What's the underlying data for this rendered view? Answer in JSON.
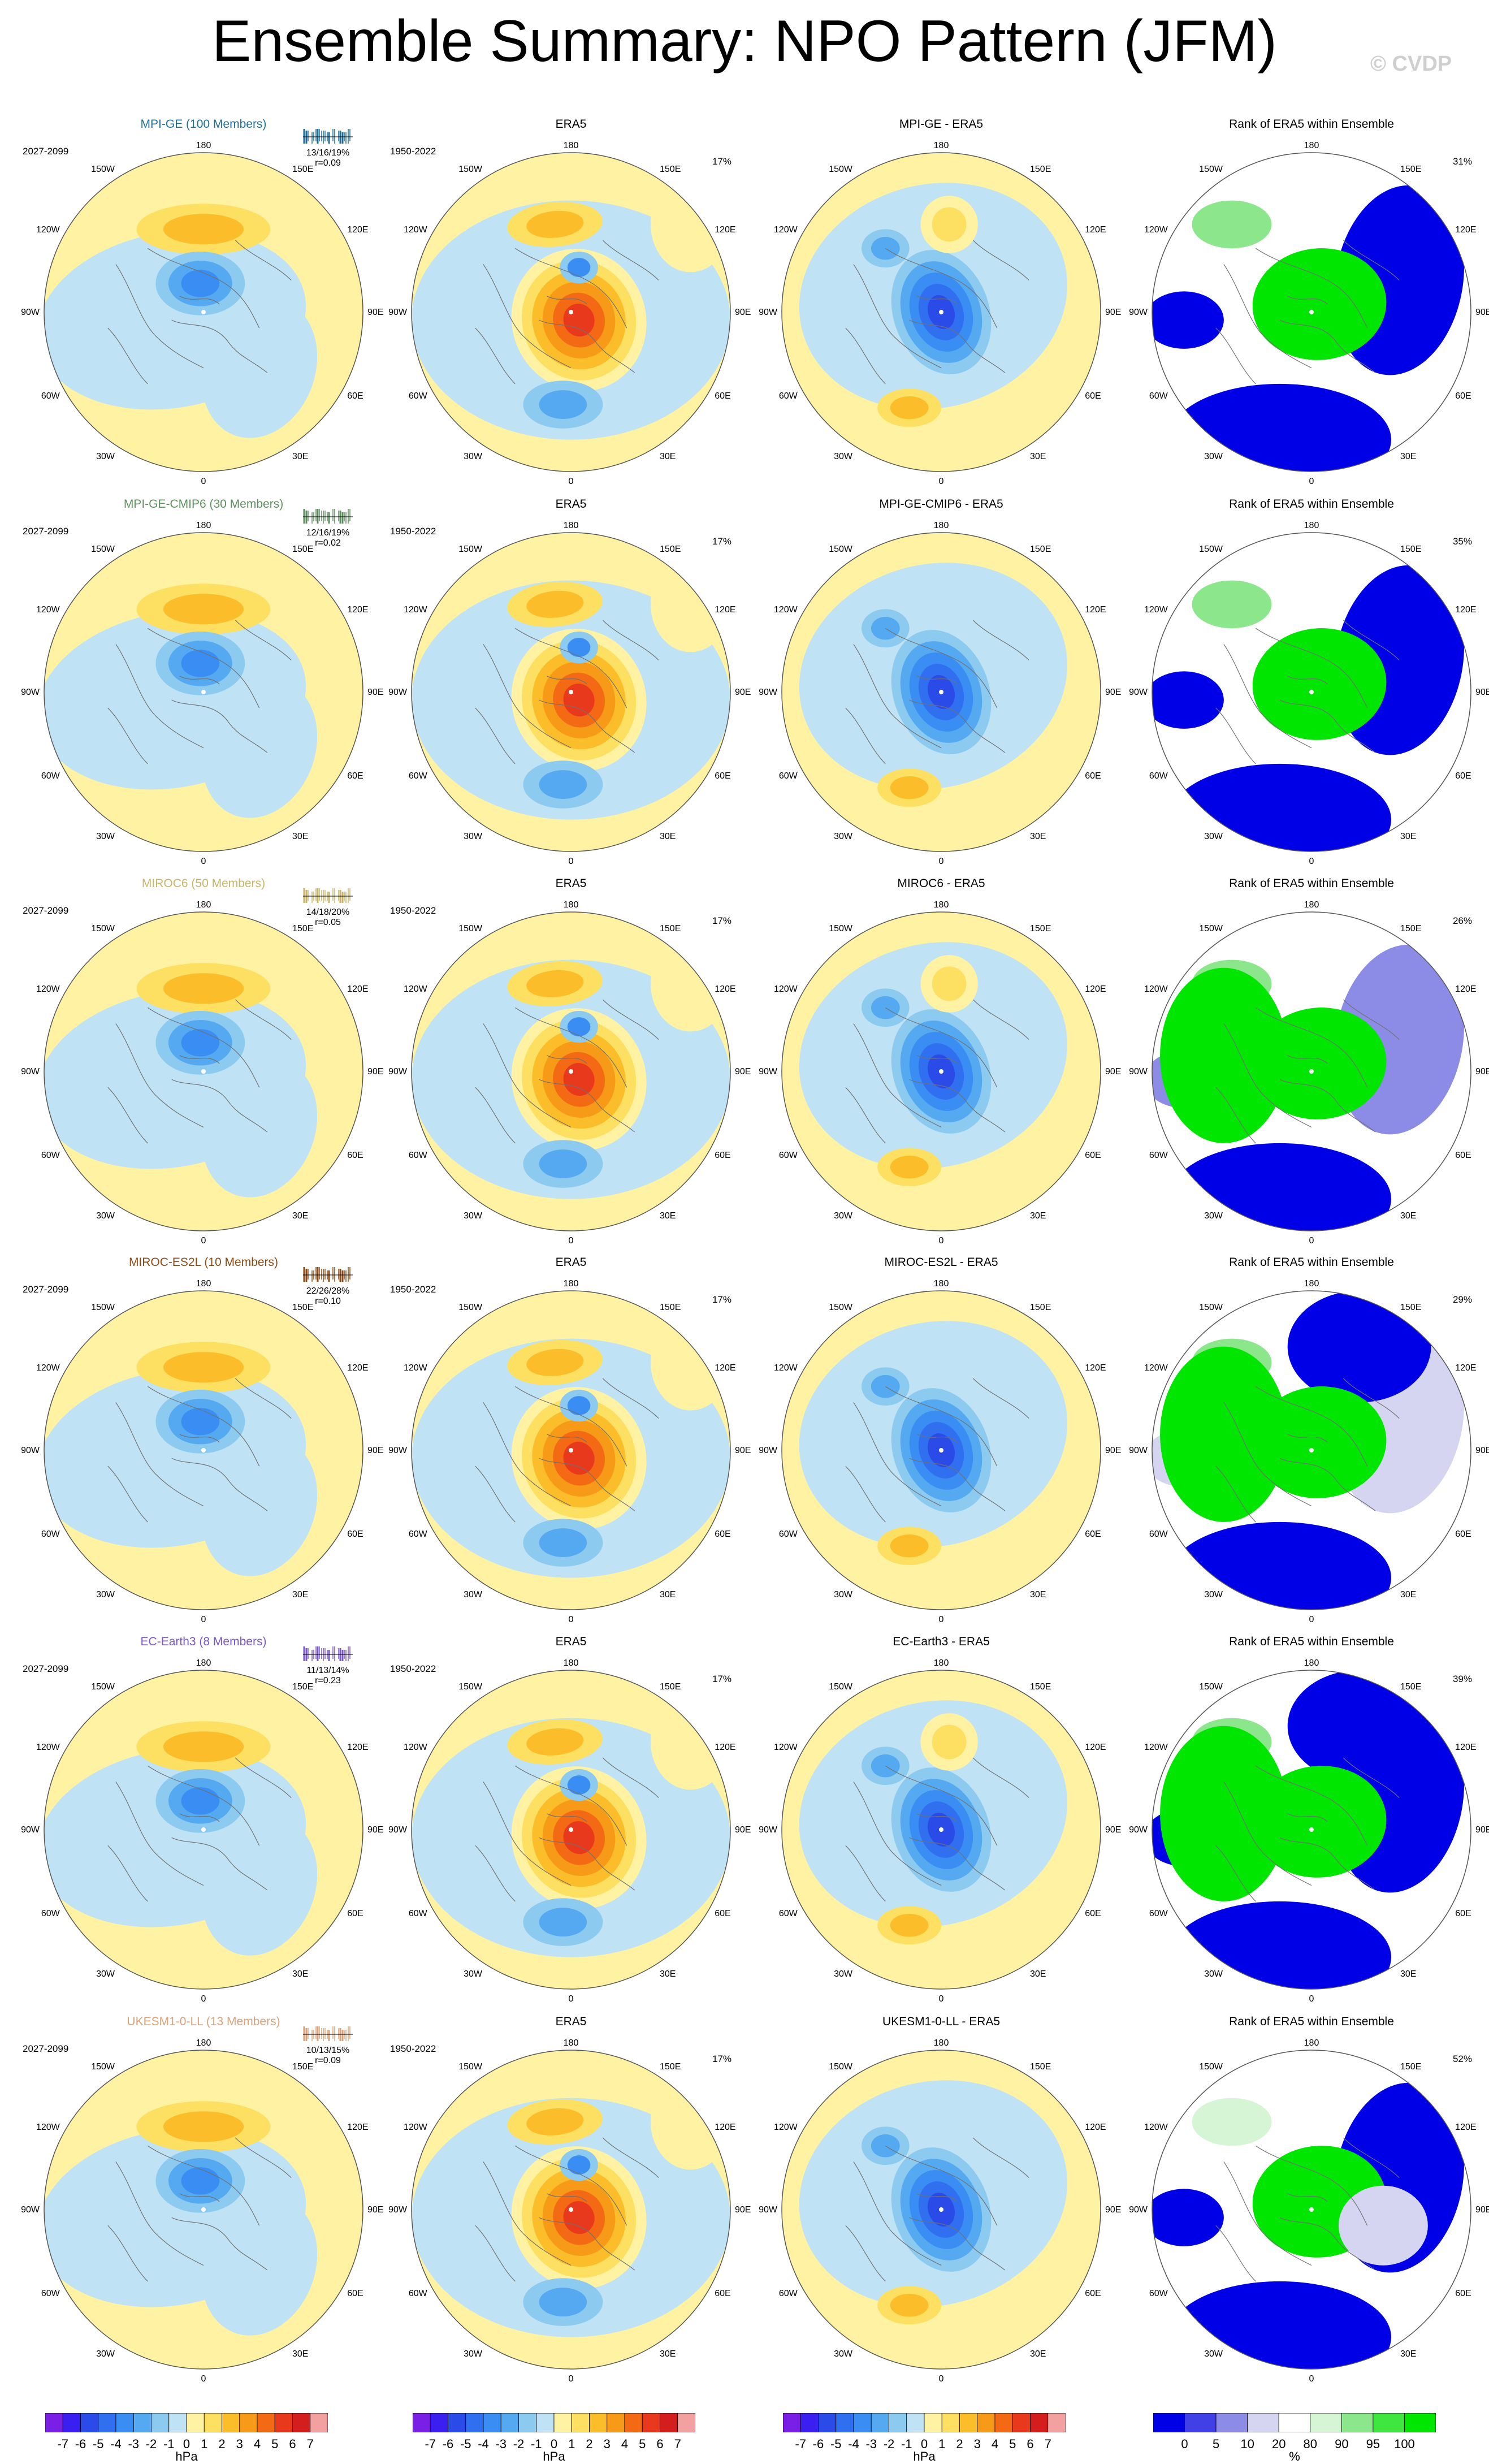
{
  "title": "Ensemble Summary: NPO Pattern (JFM)",
  "watermark": "© CVDP",
  "lon_labels": {
    "top": "180",
    "bottom": "0",
    "left": "90W",
    "right": "90E",
    "ul1": "150W",
    "ul2": "120W",
    "ur1": "150E",
    "ur2": "120E",
    "ll1": "60W",
    "ll2": "30W",
    "lr1": "60E",
    "lr2": "30E"
  },
  "common": {
    "obs_title": "ERA5",
    "obs_period": "1950-2022",
    "obs_pct": "17%",
    "model_period": "2027-2099",
    "rank_title": "Rank of ERA5 within Ensemble"
  },
  "rows": [
    {
      "model_title": "MPI-GE (100 Members)",
      "color": "#1f6f9a",
      "stats": "13/16/19%",
      "r": "r=0.09",
      "diff_title": "MPI-GE - ERA5",
      "rank_pct": "31%"
    },
    {
      "model_title": "MPI-GE-CMIP6 (30 Members)",
      "color": "#5e8f5e",
      "stats": "12/16/19%",
      "r": "r=0.02",
      "diff_title": "MPI-GE-CMIP6 - ERA5",
      "rank_pct": "35%"
    },
    {
      "model_title": "MIROC6 (50 Members)",
      "color": "#c9b56a",
      "stats": "14/18/20%",
      "r": "r=0.05",
      "diff_title": "MIROC6 - ERA5",
      "rank_pct": "26%"
    },
    {
      "model_title": "MIROC-ES2L (10 Members)",
      "color": "#8b4a16",
      "stats": "22/26/28%",
      "r": "r=0.10",
      "diff_title": "MIROC-ES2L - ERA5",
      "rank_pct": "29%"
    },
    {
      "model_title": "EC-Earth3 (8 Members)",
      "color": "#7b58c8",
      "stats": "11/13/14%",
      "r": "r=0.23",
      "diff_title": "EC-Earth3 - ERA5",
      "rank_pct": "39%"
    },
    {
      "model_title": "UKESM1-0-LL (13 Members)",
      "color": "#d8a27a",
      "stats": "10/13/15%",
      "r": "r=0.09",
      "diff_title": "UKESM1-0-LL - ERA5",
      "rank_pct": "52%"
    }
  ],
  "colorbar_pattern": {
    "labels": [
      "-7",
      "-6",
      "-5",
      "-4",
      "-3",
      "-2",
      "-1",
      "0",
      "1",
      "2",
      "3",
      "4",
      "5",
      "6",
      "7"
    ],
    "unit": "hPa",
    "colors": [
      "#7a1fe6",
      "#3b1ff0",
      "#2a4be8",
      "#2f6ff0",
      "#3a8df2",
      "#55a9f0",
      "#8ccaf0",
      "#bfe2f5",
      "#fff3a3",
      "#fde061",
      "#fbbd2a",
      "#f79a18",
      "#f46a14",
      "#e8391c",
      "#d41e1e",
      "#f2a0a0"
    ]
  },
  "colorbar_rank": {
    "labels": [
      "0",
      "5",
      "10",
      "20",
      "80",
      "90",
      "95",
      "100"
    ],
    "unit": "%",
    "colors": [
      "#0000e6",
      "#4040e6",
      "#8c8ce6",
      "#d5d5f2",
      "#ffffff",
      "#d5f5d5",
      "#8ce68c",
      "#40e640",
      "#00e600"
    ]
  }
}
